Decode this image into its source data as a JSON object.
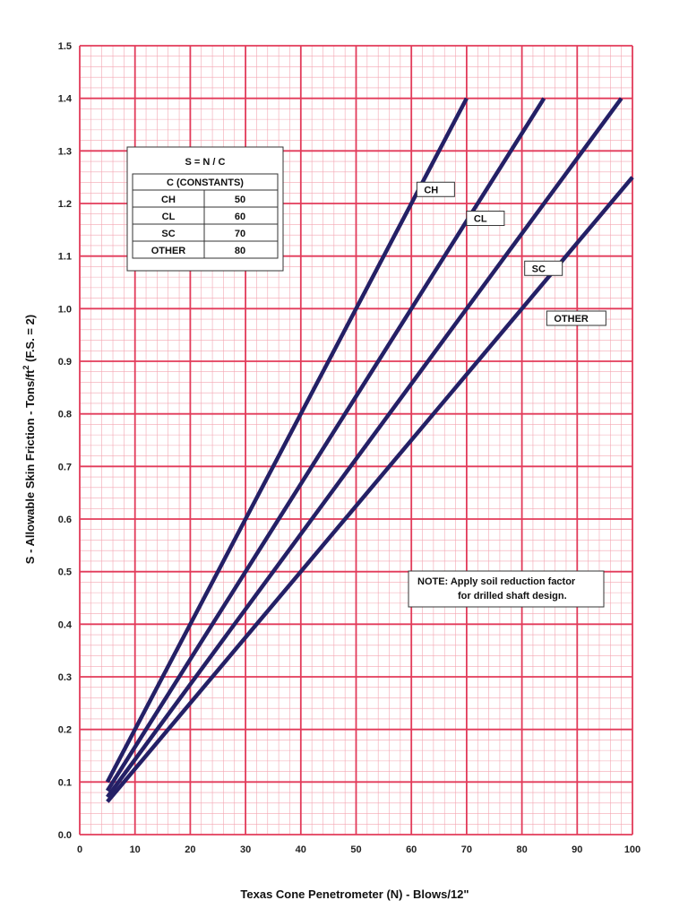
{
  "chart_data": {
    "type": "line",
    "xlabel": "Texas Cone Penetrometer (N) - Blows/12\"",
    "ylabel_main": "S - Allowable Skin Friction - Tons/ft",
    "ylabel_sup": "2",
    "ylabel_tail": " (F.S. = 2)",
    "xlim": [
      0,
      100
    ],
    "ylim": [
      0,
      1.5
    ],
    "x_ticks": [
      "0",
      "10",
      "20",
      "30",
      "40",
      "50",
      "60",
      "70",
      "80",
      "90",
      "100"
    ],
    "y_ticks": [
      "0.0",
      "0.1",
      "0.2",
      "0.3",
      "0.4",
      "0.5",
      "0.6",
      "0.7",
      "0.8",
      "0.9",
      "1.0",
      "1.1",
      "1.2",
      "1.3",
      "1.4",
      "1.5"
    ],
    "grid": true,
    "series": [
      {
        "name": "CH",
        "constant": "50",
        "points": [
          [
            5,
            0.1
          ],
          [
            70,
            1.4
          ]
        ]
      },
      {
        "name": "CL",
        "constant": "60",
        "points": [
          [
            5,
            0.0833
          ],
          [
            84,
            1.4
          ]
        ]
      },
      {
        "name": "SC",
        "constant": "70",
        "points": [
          [
            5,
            0.0714
          ],
          [
            98,
            1.4
          ]
        ]
      },
      {
        "name": "OTHER",
        "constant": "80",
        "points": [
          [
            5,
            0.0625
          ],
          [
            100,
            1.25
          ]
        ]
      }
    ],
    "series_labels": [
      {
        "text": "CH",
        "x": 61,
        "y": 1.22
      },
      {
        "text": "CL",
        "x": 70,
        "y": 1.165
      },
      {
        "text": "SC",
        "x": 80.5,
        "y": 1.07
      },
      {
        "text": "OTHER",
        "x": 84.5,
        "y": 0.975
      }
    ],
    "formula_box": {
      "formula": "S = N / C",
      "header": "C (CONSTANTS)",
      "rows": [
        [
          "CH",
          "50"
        ],
        [
          "CL",
          "60"
        ],
        [
          "SC",
          "70"
        ],
        [
          "OTHER",
          "80"
        ]
      ]
    },
    "note": {
      "line1": "NOTE:  Apply soil reduction factor",
      "line2": "for drilled shaft design."
    }
  }
}
